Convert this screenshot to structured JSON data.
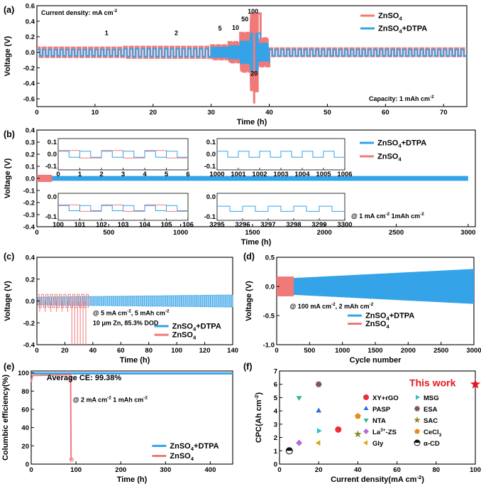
{
  "colors": {
    "znso4": "#f07a7a",
    "dtpa": "#35a3e8",
    "xyrgo": "#e8303a",
    "pasp": "#2d6cd6",
    "nta": "#2fb58a",
    "la": "#b06be0",
    "gly": "#d4a717",
    "msg": "#2fc0c0",
    "esa": "#7d5a55",
    "sac": "#8c8a2a",
    "cecl3": "#e88a1a",
    "acd": "#111111",
    "thiswork": "#e8151c"
  },
  "chart_data": [
    {
      "panel": "(a)",
      "type": "line",
      "xlabel": "Time (h)",
      "ylabel": "Voltage (V)",
      "xlim": [
        0,
        74
      ],
      "ylim": [
        -0.7,
        0.6
      ],
      "xticks": [
        0,
        10,
        20,
        30,
        40,
        50,
        60,
        70
      ],
      "yticks": [
        "0.6",
        "0.4",
        "0.2",
        "0.0",
        "-0.2",
        "-0.4",
        "-0.6"
      ],
      "ytick_values": [
        0.6,
        0.4,
        0.2,
        0.0,
        -0.2,
        -0.4,
        -0.6
      ],
      "legend": [
        "ZnSO",
        "ZnSO"
      ],
      "legend_sub": [
        "4",
        "4"
      ],
      "legend_suffix": [
        "",
        "+DTPA"
      ],
      "annotation_top": "Current density: mA cm",
      "annotation_top_sup": "-2",
      "annotation_bottom": "Capacity: 1 mAh cm",
      "annotation_bottom_sup": "-2",
      "rate_labels": [
        "1",
        "2",
        "5",
        "10",
        "50",
        "100",
        "20"
      ],
      "rate_current_density": [
        1,
        2,
        5,
        10,
        50,
        100,
        20
      ],
      "segments_h": [
        [
          0,
          15
        ],
        [
          15,
          30
        ],
        [
          30,
          33
        ],
        [
          33,
          35
        ],
        [
          35,
          36.7
        ],
        [
          36.7,
          38.2
        ],
        [
          38.2,
          40
        ]
      ],
      "series": [
        {
          "name": "ZnSO4",
          "amplitude_V": [
            0.06,
            0.07,
            0.09,
            0.13,
            0.25,
            0.5,
            0.18,
            0.05
          ]
        },
        {
          "name": "ZnSO4+DTPA",
          "amplitude_V": [
            0.04,
            0.05,
            0.07,
            0.09,
            0.15,
            0.25,
            0.12,
            0.04
          ]
        }
      ]
    },
    {
      "panel": "(b)",
      "type": "line",
      "xlabel": "Time (h)",
      "ylabel": "Voltage (V)",
      "xlim": [
        0,
        3050
      ],
      "ylim": [
        -0.4,
        0.4
      ],
      "xticks": [
        0,
        500,
        1000,
        1500,
        2000,
        2500,
        3000
      ],
      "yticks": [
        "0.4",
        "0.3",
        "0.2",
        "0.1",
        "0.0",
        "-0.1",
        "-0.2",
        "-0.3",
        "-0.4"
      ],
      "ytick_values": [
        0.4,
        0.3,
        0.2,
        0.1,
        0.0,
        -0.1,
        -0.2,
        -0.3,
        -0.4
      ],
      "legend": [
        "ZnSO",
        "ZnSO"
      ],
      "legend_sub": [
        "4",
        "4"
      ],
      "legend_suffix": [
        "+DTPA",
        ""
      ],
      "annotation": "@ 1 mA cm",
      "annotation_sup": "-2",
      "annotation_tail": "  1mAh cm",
      "annotation_tail_sup": "-2",
      "series": [
        {
          "name": "ZnSO4+DTPA",
          "x_end": 3000,
          "amplitude_V": 0.02
        },
        {
          "name": "ZnSO4",
          "x_end": 105,
          "amplitude_V": 0.03
        }
      ],
      "insets": [
        {
          "xticks": [
            "0",
            "1",
            "2",
            "3",
            "4",
            "5",
            "6"
          ],
          "yticks": [
            "0.1",
            "0.0",
            "-0.1"
          ]
        },
        {
          "xticks": [
            "1000",
            "1001",
            "1002",
            "1003",
            "1004",
            "1005",
            "1006"
          ],
          "yticks": [
            "0.1",
            "0.0",
            "-0.1"
          ]
        },
        {
          "xticks": [
            "100",
            "101",
            "102",
            "103",
            "104",
            "105",
            "106"
          ],
          "yticks": [
            "0.0",
            "-0.1"
          ]
        },
        {
          "xticks": [
            "3295",
            "3296",
            "3297",
            "3298",
            "3299",
            "3300"
          ],
          "yticks": [
            "0.0",
            "-0.1"
          ]
        }
      ]
    },
    {
      "panel": "(c)",
      "type": "line",
      "xlabel": "Time (h)",
      "ylabel": "Voltage (V)",
      "xlim": [
        0,
        140
      ],
      "ylim": [
        -0.4,
        0.4
      ],
      "xticks": [
        0,
        20,
        40,
        60,
        80,
        100,
        120,
        140
      ],
      "yticks": [
        "0.4",
        "0.2",
        "0.0",
        "-0.2",
        "-0.4"
      ],
      "ytick_values": [
        0.4,
        0.2,
        0.0,
        -0.2,
        -0.4
      ],
      "annotation1": "@ 5 mA cm",
      "annotation1_sup": "-2",
      "annotation1_tail": ",  5 mAh cm",
      "annotation1_tail_sup": "-2",
      "annotation2": "10 μm Zn, 85.3% DOD",
      "legend": [
        "ZnSO",
        "ZnSO"
      ],
      "legend_sub": [
        "4",
        "4"
      ],
      "legend_suffix": [
        "+DTPA",
        ""
      ],
      "series": [
        {
          "name": "ZnSO4+DTPA",
          "x_end": 140,
          "amplitude_V": 0.05
        },
        {
          "name": "ZnSO4",
          "x_end": 37,
          "amplitude_V": 0.06,
          "failure_h": 24
        }
      ]
    },
    {
      "panel": "(d)",
      "type": "line",
      "xlabel": "Cycle number",
      "ylabel": "Voltage (V)",
      "xlim": [
        0,
        3000
      ],
      "ylim": [
        -1.0,
        0.5
      ],
      "xticks": [
        0,
        500,
        1000,
        1500,
        2000,
        2500,
        3000
      ],
      "yticks": [
        "0.5",
        "0.0",
        "-0.5",
        "-1.0"
      ],
      "ytick_values": [
        0.5,
        0.0,
        -0.5,
        -1.0
      ],
      "annotation": "@ 100 mA cm",
      "annotation_sup": "-2",
      "annotation_tail": ", 2 mAh cm",
      "annotation_tail_sup": "-2",
      "legend": [
        "ZnSO",
        "ZnSO"
      ],
      "legend_sub": [
        "4",
        "4"
      ],
      "legend_suffix": [
        "+DTPA",
        ""
      ],
      "series": [
        {
          "name": "ZnSO4+DTPA",
          "x_end": 3000,
          "amplitude_start_V": 0.13,
          "amplitude_end_V": 0.3
        },
        {
          "name": "ZnSO4",
          "x_end": 260,
          "amplitude_V": 0.17
        }
      ]
    },
    {
      "panel": "(e)",
      "type": "line",
      "xlabel": "Time (h)",
      "ylabel": "Columbic efficiency(%)",
      "xlim": [
        0,
        450
      ],
      "ylim": [
        0,
        102
      ],
      "xticks": [
        0,
        100,
        200,
        300,
        400
      ],
      "yticks": [
        "100",
        "80",
        "60",
        "40",
        "20",
        "0"
      ],
      "ytick_values": [
        100,
        80,
        60,
        40,
        20,
        0
      ],
      "annotation": "Average CE: 99.38%",
      "annotation2": "@ 2 mA cm",
      "annotation2_sup": "-2",
      "annotation2_tail": "  1 mAh cm",
      "annotation2_tail_sup": "-2",
      "legend": [
        "ZnSO",
        "ZnSO"
      ],
      "legend_sub": [
        "4",
        "4"
      ],
      "legend_suffix": [
        "+DTPA",
        ""
      ],
      "series": [
        {
          "name": "ZnSO4+DTPA",
          "x_end": 450,
          "value": 99.38
        },
        {
          "name": "ZnSO4",
          "x_end": 88,
          "value": 98,
          "drop_to": 5
        }
      ]
    },
    {
      "panel": "(f)",
      "type": "scatter",
      "xlabel": "Current density(mA cm",
      "xlabel_sup": "-2",
      "xlabel_tail": ")",
      "ylabel": "CPC(Ah cm",
      "ylabel_sup": "-2",
      "ylabel_tail": ")",
      "xlim": [
        0,
        100
      ],
      "ylim": [
        0,
        7
      ],
      "xticks": [
        0,
        20,
        40,
        60,
        80,
        100
      ],
      "yticks": [
        0,
        1,
        2,
        3,
        4,
        5,
        6,
        7
      ],
      "highlight": "This work",
      "points": [
        {
          "label": "XY+rGO",
          "x": 30,
          "y": 2.6,
          "marker": "circle",
          "color": "#e8303a"
        },
        {
          "label": "PASP",
          "x": 20,
          "y": 4.0,
          "marker": "triangle-up",
          "color": "#2d6cd6"
        },
        {
          "label": "NTA",
          "x": 10,
          "y": 5.0,
          "marker": "triangle-down",
          "color": "#2fb58a"
        },
        {
          "label": "La",
          "label_sup": "3+",
          "label_tail": "-ZS",
          "x": 10,
          "y": 1.6,
          "marker": "diamond",
          "color": "#b06be0"
        },
        {
          "label": "Gly",
          "x": 20,
          "y": 1.6,
          "marker": "triangle-left",
          "color": "#d4a717"
        },
        {
          "label": "MSG",
          "x": 20,
          "y": 2.5,
          "marker": "triangle-right",
          "color": "#2fc0c0"
        },
        {
          "label": "ESA",
          "x": 20,
          "y": 6.0,
          "marker": "hexagon",
          "color": "#7d5a55"
        },
        {
          "label": "SAC",
          "x": 40,
          "y": 2.25,
          "marker": "star",
          "color": "#8c8a2a"
        },
        {
          "label": "CeCl",
          "label_sub": "3",
          "x": 40,
          "y": 3.6,
          "marker": "pentagon",
          "color": "#e88a1a"
        },
        {
          "label": "α-CD",
          "x": 5,
          "y": 1.0,
          "marker": "circle-half",
          "color": "#111111"
        },
        {
          "label": "This work",
          "x": 100,
          "y": 6.0,
          "marker": "star",
          "color": "#e8151c"
        }
      ]
    }
  ]
}
